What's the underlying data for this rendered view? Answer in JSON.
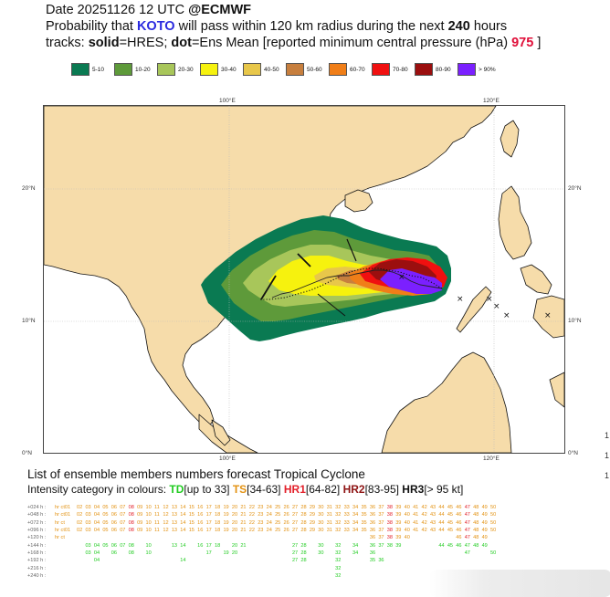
{
  "header": {
    "line1_prefix": "Date 20251126 12 UTC   ",
    "line1_brand": "@ECMWF",
    "line2_a": "Probability that ",
    "storm_name": "KOTO",
    "line2_b": " will pass within 120 km radius during the next ",
    "hours": "240",
    "line2_c": " hours",
    "line3_a": "tracks: ",
    "solid_word": "solid",
    "line3_b": "=HRES; ",
    "dot_word": "dot",
    "line3_c": "=Ens Mean [reported minimum central pressure (hPa) ",
    "pressure": "975",
    "line3_d": " ]"
  },
  "legend": [
    {
      "label": "5-10",
      "color": "#0a7a52"
    },
    {
      "label": "10-20",
      "color": "#5e9a3a"
    },
    {
      "label": "20-30",
      "color": "#a8c65a"
    },
    {
      "label": "30-40",
      "color": "#f6f20e"
    },
    {
      "label": "40-50",
      "color": "#e8c74a"
    },
    {
      "label": "50-60",
      "color": "#c77f3e"
    },
    {
      "label": "60-70",
      "color": "#f07e18"
    },
    {
      "label": "70-80",
      "color": "#f01010"
    },
    {
      "label": "80-90",
      "color": "#9b0f0f"
    },
    {
      "label": "> 90%",
      "color": "#7b20ff"
    }
  ],
  "axes": {
    "lon_labels": [
      "100°E",
      "120°E"
    ],
    "lat_labels": [
      "20°N",
      "10°N",
      "0°N"
    ]
  },
  "ensemble": {
    "title": "List of ensemble members numbers forecast Tropical Cyclone",
    "intensity_prefix": "Intensity category in colours: ",
    "td": "TD",
    "td_range": "[up to 33]",
    "ts": "TS",
    "ts_range": "[34-63]",
    "hr1": "HR1",
    "hr1_range": "[64-82]",
    "hr2": "HR2",
    "hr2_range": "[83-95]",
    "hr3": "HR3",
    "hr3_range": "[> 95 kt]"
  },
  "table": {
    "hr_ct_label": "hr ct",
    "rows": [
      {
        "label": "+024 h :",
        "tag": "hr ct01",
        "cells": "02,03,04,05,06,07,08,09,10,11,12,13,14,15,16,17,18,19,20,21,22,23,24,25,26,27,28,29,30,31,32,33,34,35,36,37,38,39,40,41,42,43,44,45,46,47,48,49,50",
        "color": "#e39212"
      },
      {
        "label": "+048 h :",
        "tag": "hr ct01",
        "cells": "02,03,04,05,06,07,08,09,10,11,12,13,14,15,16,17,18,19,20,21,22,23,24,25,26,27,28,29,30,31,32,33,34,35,36,37,38,39,40,41,42,43,44,45,46,47,48,49,50",
        "color": "#e39212"
      },
      {
        "label": "+072 h :",
        "tag": "hr ct",
        "cells": "02,03,04,05,06,07,08,09,10,11,12,13,14,15,16,17,18,19,20,21,22,23,24,25,26,27,28,29,30,31,32,33,34,35,36,37,38,39,40,41,42,43,44,45,46,47,48,49,50",
        "color": "#e39212"
      },
      {
        "label": "+096 h :",
        "tag": "hr ct01",
        "cells": "02,03,04,05,06,07,08,09,10,11,12,13,14,15,16,17,18,19,20,21,22,23,24,25,26,27,28,29,30,31,32,33,34,35,36,37,38,39,40,41,42,43,44,45,46,47,48,49,50",
        "color": "#e39212"
      },
      {
        "label": "+120 h :",
        "tag": "hr ct",
        "cells": ",,,,,,,,,,,,,,,,,,,,,,,,,,,,,,,,,,36,37,38,39,40,,,,,,46,47,48,49",
        "color": "#e39212"
      },
      {
        "label": "+144 h :",
        "tag": "",
        "cells": ",03,04,05,06,07,08,,10,,,13,14,,16,17,18,,20,21,,,,,,27,28,,30,,32,,34,,36,37,38,39,,,,,44,45,46,47,48,49",
        "color": "#22cc22"
      },
      {
        "label": "+168 h :",
        "tag": "",
        "cells": ",03,04,,06,,08,,10,,,,,,,17,,19,20,,,,,,,27,28,,30,,32,,34,,36,,,,,,,,,,,47,,,50",
        "color": "#22cc22"
      },
      {
        "label": "+192 h :",
        "tag": "",
        "cells": ",,04,,,,,,,,,,14,,,,,,,,,,,,,27,28,,,,32,,,,35,36,,,,,,,,,,,,,",
        "color": "#22cc22"
      },
      {
        "label": "+216 h :",
        "tag": "",
        "cells": ",,,,,,,,,,,,,,,,,,,,,,,,,,,,,,32,,,,,,,,,,,,,,,,,,",
        "color": "#22cc22"
      },
      {
        "label": "+240 h :",
        "tag": "",
        "cells": ",,,,,,,,,,,,,,,,,,,,,,,,,,,,,,32,,,,,,,,,,,,,,,,,,",
        "color": "#22cc22"
      }
    ]
  },
  "side_marks": [
    "1",
    "1",
    "1"
  ]
}
